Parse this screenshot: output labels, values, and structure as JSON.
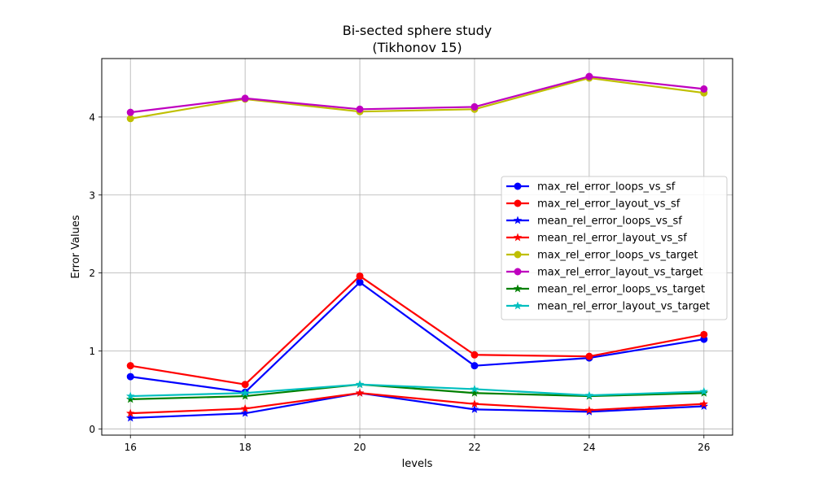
{
  "chart_data": {
    "type": "line",
    "title": "Bi-sected sphere study",
    "subtitle": "(Tikhonov 15)",
    "xlabel": "levels",
    "ylabel": "Error Values",
    "x": [
      16,
      18,
      20,
      22,
      24,
      26
    ],
    "xlim": [
      15.5,
      26.5
    ],
    "ylim": [
      -0.08,
      4.75
    ],
    "xticks": [
      16,
      18,
      20,
      22,
      24,
      26
    ],
    "yticks": [
      0,
      1,
      2,
      3,
      4
    ],
    "grid": true,
    "legend_position": "center-right",
    "series": [
      {
        "name": "max_rel_error_loops_vs_sf",
        "color": "#0000ff",
        "marker": "circle",
        "values": [
          0.67,
          0.47,
          1.88,
          0.81,
          0.91,
          1.15
        ]
      },
      {
        "name": "max_rel_error_layout_vs_sf",
        "color": "#ff0000",
        "marker": "circle",
        "values": [
          0.81,
          0.57,
          1.96,
          0.95,
          0.93,
          1.21
        ]
      },
      {
        "name": "mean_rel_error_loops_vs_sf",
        "color": "#0000ff",
        "marker": "star",
        "values": [
          0.14,
          0.2,
          0.46,
          0.25,
          0.22,
          0.29
        ]
      },
      {
        "name": "mean_rel_error_layout_vs_sf",
        "color": "#ff0000",
        "marker": "star",
        "values": [
          0.2,
          0.26,
          0.46,
          0.32,
          0.24,
          0.32
        ]
      },
      {
        "name": "max_rel_error_loops_vs_target",
        "color": "#bfbf00",
        "marker": "circle",
        "values": [
          3.98,
          4.23,
          4.07,
          4.1,
          4.5,
          4.31
        ]
      },
      {
        "name": "max_rel_error_layout_vs_target",
        "color": "#bf00bf",
        "marker": "circle",
        "values": [
          4.06,
          4.24,
          4.1,
          4.13,
          4.52,
          4.36
        ]
      },
      {
        "name": "mean_rel_error_loops_vs_target",
        "color": "#008000",
        "marker": "star",
        "values": [
          0.38,
          0.42,
          0.57,
          0.46,
          0.42,
          0.46
        ]
      },
      {
        "name": "mean_rel_error_layout_vs_target",
        "color": "#00bfbf",
        "marker": "star",
        "values": [
          0.42,
          0.46,
          0.57,
          0.51,
          0.43,
          0.48
        ]
      }
    ]
  }
}
